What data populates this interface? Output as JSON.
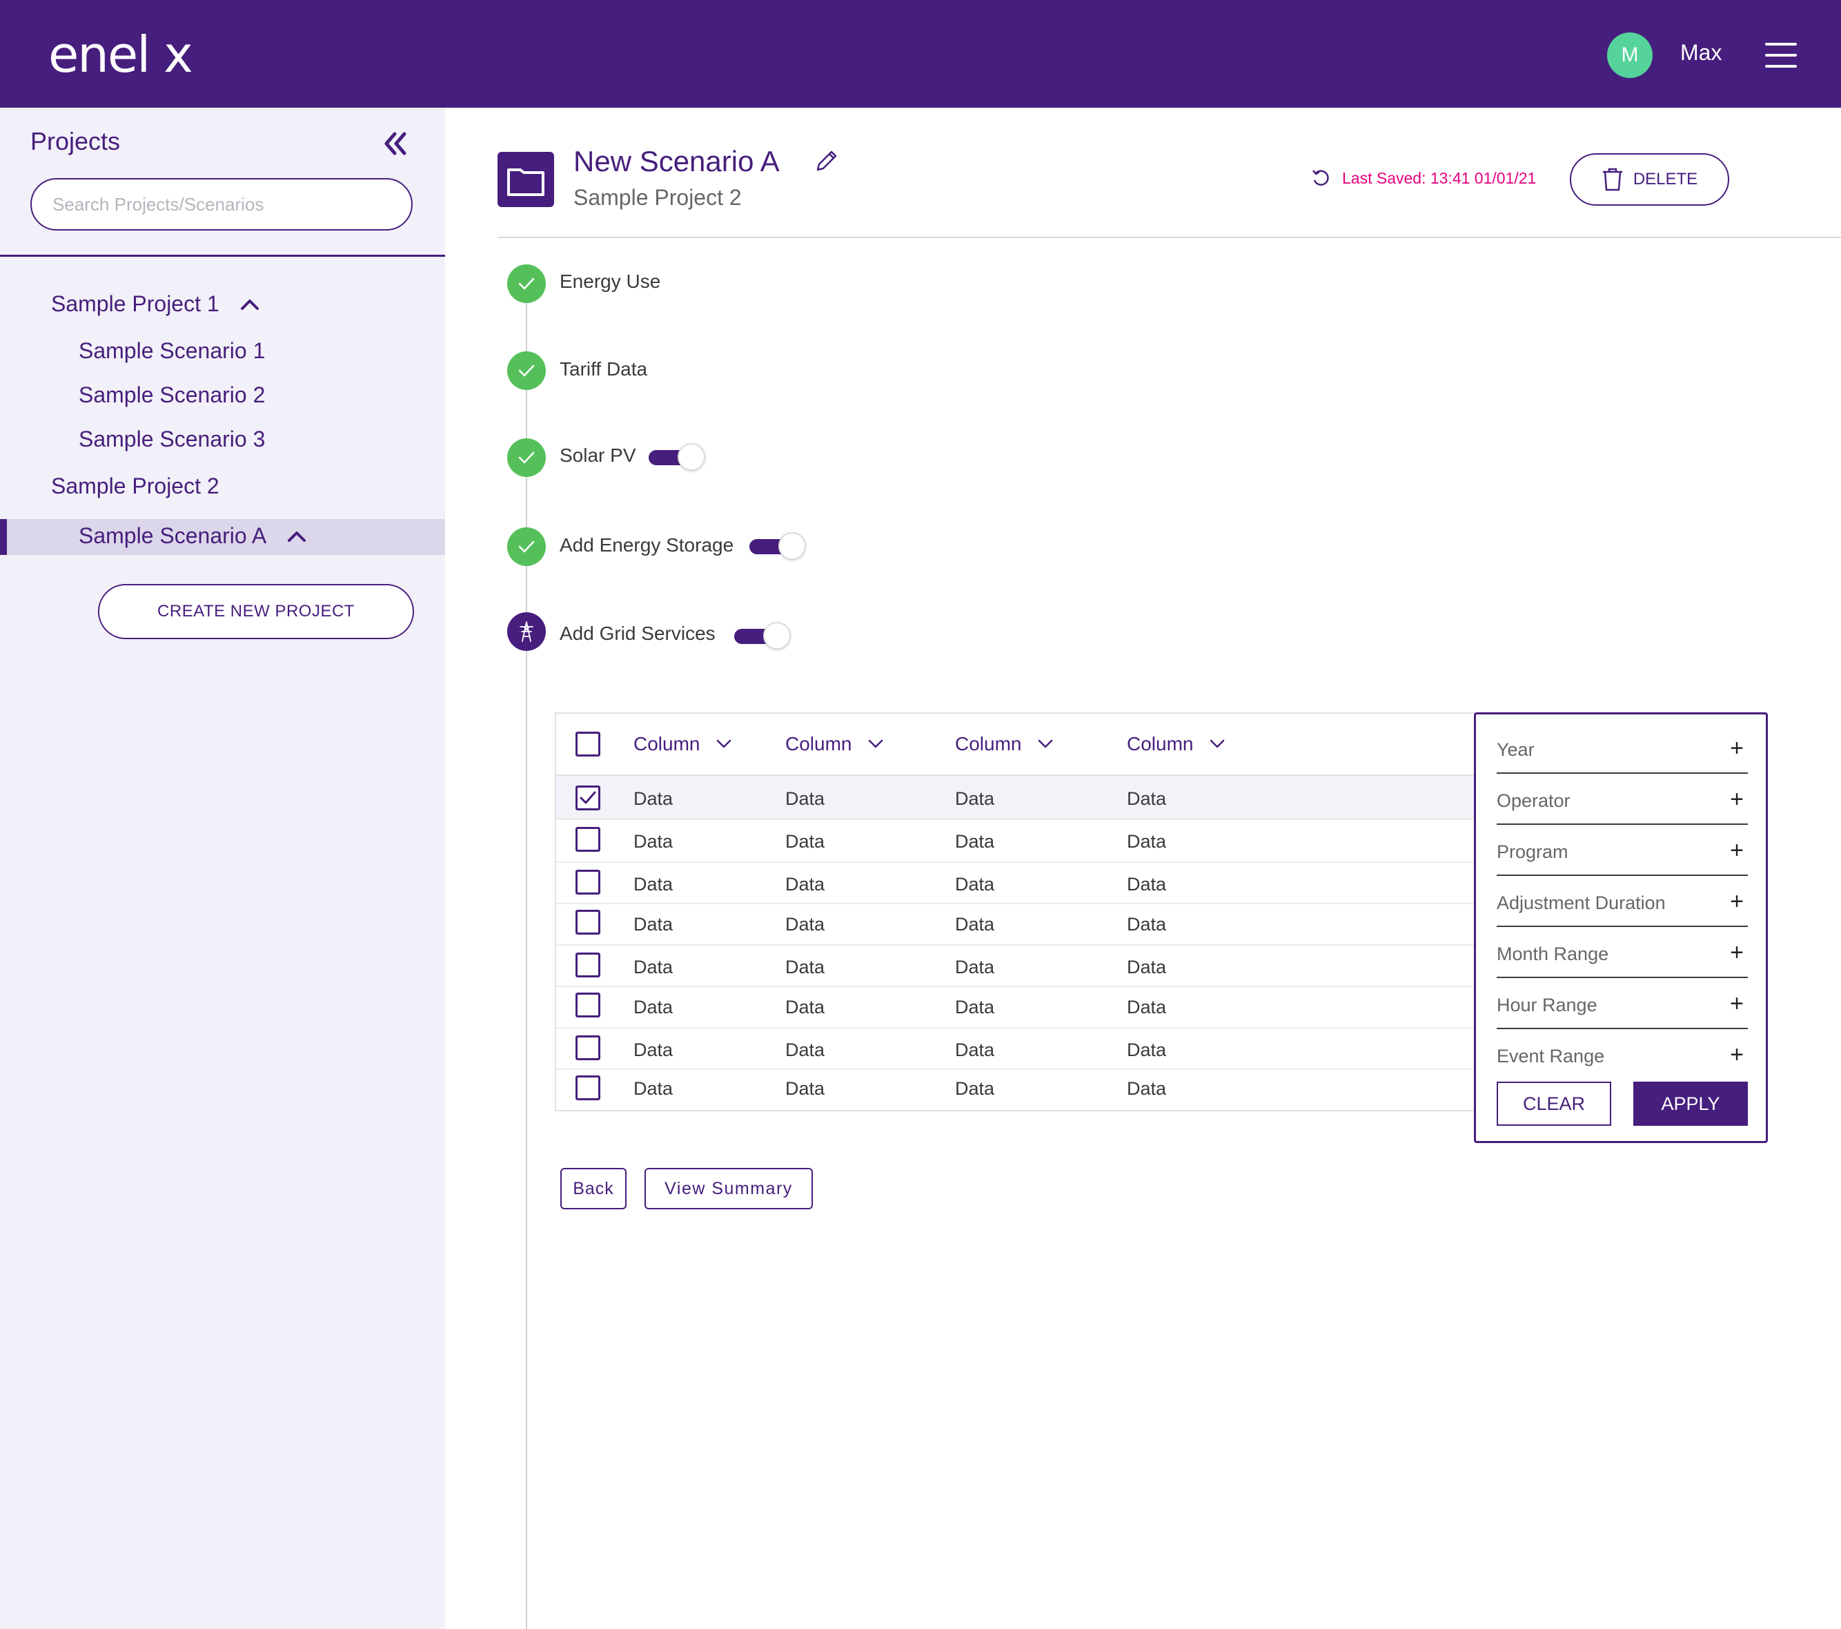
{
  "topbar": {
    "brand": "enel x",
    "avatar_initial": "M",
    "username": "Max",
    "bg_color": "#461e7d"
  },
  "sidebar": {
    "title": "Projects",
    "search_placeholder": "Search Projects/Scenarios",
    "projects": [
      {
        "label": "Sample Project 1",
        "expanded": true,
        "scenarios": [
          "Sample Scenario 1",
          "Sample Scenario 2",
          "Sample Scenario 3"
        ]
      },
      {
        "label": "Sample Project 2",
        "expanded": true,
        "scenarios": [
          "Sample Scenario A"
        ]
      }
    ],
    "active_scenario": "Sample Scenario A",
    "create_label": "CREATE NEW PROJECT"
  },
  "header": {
    "scenario_title": "New Scenario A",
    "project_name": "Sample Project 2",
    "last_saved": "Last Saved: 13:41 01/01/21",
    "delete_label": "DELETE"
  },
  "steps": [
    {
      "label": "Energy Use",
      "status": "complete",
      "toggle": null
    },
    {
      "label": "Tariff Data",
      "status": "complete",
      "toggle": null
    },
    {
      "label": "Solar PV",
      "status": "complete",
      "toggle": true
    },
    {
      "label": "Add Energy Storage",
      "status": "complete",
      "toggle": true
    },
    {
      "label": "Add Grid Services",
      "status": "current",
      "toggle": true
    }
  ],
  "table": {
    "columns": [
      "Column",
      "Column",
      "Column",
      "Column"
    ],
    "rows": [
      {
        "checked": true,
        "cells": [
          "Data",
          "Data",
          "Data",
          "Data"
        ]
      },
      {
        "checked": false,
        "cells": [
          "Data",
          "Data",
          "Data",
          "Data"
        ]
      },
      {
        "checked": false,
        "cells": [
          "Data",
          "Data",
          "Data",
          "Data"
        ]
      },
      {
        "checked": false,
        "cells": [
          "Data",
          "Data",
          "Data",
          "Data"
        ]
      },
      {
        "checked": false,
        "cells": [
          "Data",
          "Data",
          "Data",
          "Data"
        ]
      },
      {
        "checked": false,
        "cells": [
          "Data",
          "Data",
          "Data",
          "Data"
        ]
      },
      {
        "checked": false,
        "cells": [
          "Data",
          "Data",
          "Data",
          "Data"
        ]
      },
      {
        "checked": false,
        "cells": [
          "Data",
          "Data",
          "Data",
          "Data"
        ]
      }
    ]
  },
  "filter": {
    "items": [
      "Year",
      "Operator",
      "Program",
      "Adjustment Duration",
      "Month Range",
      "Hour Range",
      "Event Range"
    ],
    "plus_symbol": "+",
    "clear_label": "CLEAR",
    "apply_label": "APPLY"
  },
  "nav": {
    "back_label": "Back",
    "summary_label": "View Summary"
  },
  "colors": {
    "accent": "#461e7d",
    "success": "#55c05a",
    "avatar": "#55d39b",
    "saved_text": "#e6007e"
  }
}
